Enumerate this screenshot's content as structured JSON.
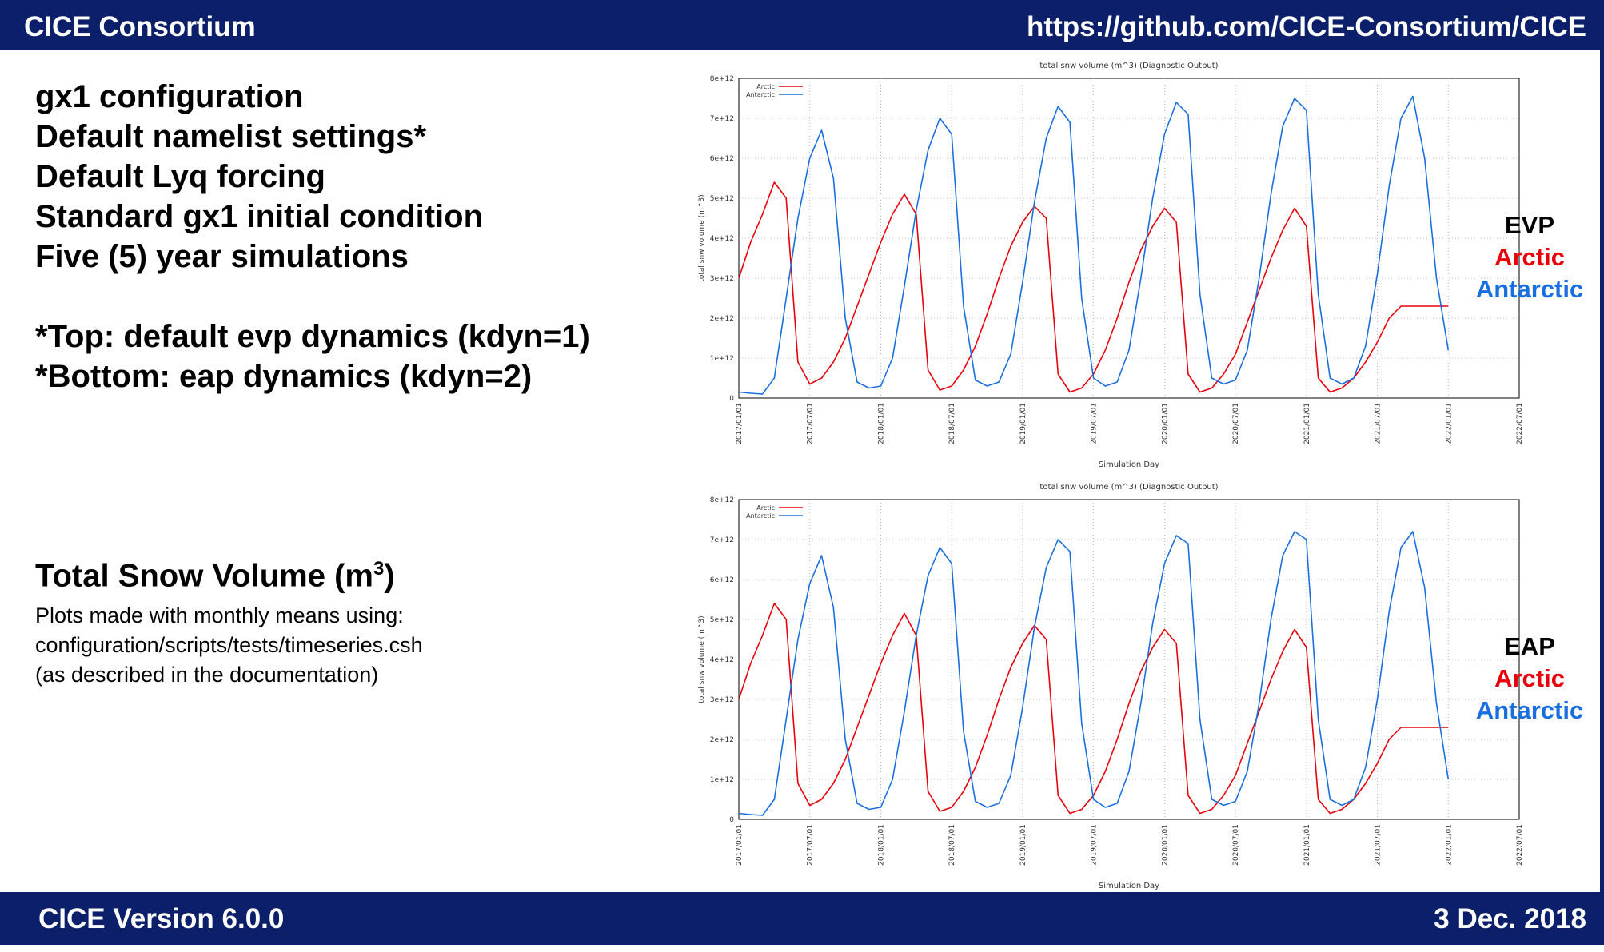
{
  "header": {
    "org": "CICE Consortium",
    "url": "https://github.com/CICE-Consortium/CICE"
  },
  "footer": {
    "version": "CICE Version 6.0.0",
    "date": "3 Dec. 2018"
  },
  "left": {
    "lines": [
      "gx1 configuration",
      "Default namelist settings*",
      "Default Lyq forcing",
      "Standard gx1 initial condition",
      "Five (5) year simulations",
      "",
      "*Top: default evp dynamics (kdyn=1)",
      "*Bottom: eap dynamics (kdyn=2)"
    ],
    "snow_title": "Total Snow Volume (m",
    "snow_title_sup": "3",
    "snow_title_end": ")",
    "notes": [
      "Plots made with monthly means using:",
      "configuration/scripts/tests/timeseries.csh",
      "(as described in the documentation)"
    ]
  },
  "labels": {
    "top": {
      "name": "EVP",
      "arctic": "Arctic",
      "antarctic": "Antarctic"
    },
    "bottom": {
      "name": "EAP",
      "arctic": "Arctic",
      "antarctic": "Antarctic"
    }
  },
  "colors": {
    "banner": "#0b1f6b",
    "arctic": "#e8000b",
    "antarctic": "#1a6fe0"
  },
  "chart_data": [
    {
      "type": "line",
      "title": "total snw volume (m^3) (Diagnostic Output)",
      "xlabel": "Simulation Day",
      "ylabel": "total snw volume (m^3)",
      "ylim": [
        0,
        8000000000000.0
      ],
      "yticks": [
        "0",
        "1e+12",
        "2e+12",
        "3e+12",
        "4e+12",
        "5e+12",
        "6e+12",
        "7e+12",
        "8e+12"
      ],
      "xticks": [
        "2017/01/01",
        "2017/07/01",
        "2018/01/01",
        "2018/07/01",
        "2019/01/01",
        "2019/07/01",
        "2020/01/01",
        "2020/07/01",
        "2021/01/01",
        "2021/07/01",
        "2022/01/01",
        "2022/07/01"
      ],
      "legend": "top-left",
      "x": [
        "2017-01",
        "2017-02",
        "2017-03",
        "2017-04",
        "2017-05",
        "2017-06",
        "2017-07",
        "2017-08",
        "2017-09",
        "2017-10",
        "2017-11",
        "2017-12",
        "2018-01",
        "2018-02",
        "2018-03",
        "2018-04",
        "2018-05",
        "2018-06",
        "2018-07",
        "2018-08",
        "2018-09",
        "2018-10",
        "2018-11",
        "2018-12",
        "2019-01",
        "2019-02",
        "2019-03",
        "2019-04",
        "2019-05",
        "2019-06",
        "2019-07",
        "2019-08",
        "2019-09",
        "2019-10",
        "2019-11",
        "2019-12",
        "2020-01",
        "2020-02",
        "2020-03",
        "2020-04",
        "2020-05",
        "2020-06",
        "2020-07",
        "2020-08",
        "2020-09",
        "2020-10",
        "2020-11",
        "2020-12",
        "2021-01",
        "2021-02",
        "2021-03",
        "2021-04",
        "2021-05",
        "2021-06",
        "2021-07",
        "2021-08",
        "2021-09",
        "2021-10",
        "2021-11",
        "2021-12",
        "2022-01"
      ],
      "series": [
        {
          "name": "Arctic",
          "values": [
            3000000000000.0,
            3900000000000.0,
            4600000000000.0,
            5400000000000.0,
            5000000000000.0,
            900000000000.0,
            350000000000.0,
            500000000000.0,
            900000000000.0,
            1500000000000.0,
            2300000000000.0,
            3100000000000.0,
            3900000000000.0,
            4600000000000.0,
            5100000000000.0,
            4600000000000.0,
            700000000000.0,
            200000000000.0,
            300000000000.0,
            700000000000.0,
            1300000000000.0,
            2100000000000.0,
            3000000000000.0,
            3800000000000.0,
            4400000000000.0,
            4800000000000.0,
            4500000000000.0,
            600000000000.0,
            150000000000.0,
            250000000000.0,
            600000000000.0,
            1200000000000.0,
            2000000000000.0,
            2900000000000.0,
            3700000000000.0,
            4300000000000.0,
            4750000000000.0,
            4400000000000.0,
            600000000000.0,
            150000000000.0,
            250000000000.0,
            600000000000.0,
            1100000000000.0,
            1900000000000.0,
            2700000000000.0,
            3500000000000.0,
            4200000000000.0,
            4750000000000.0,
            4300000000000.0,
            500000000000.0,
            150000000000.0,
            250000000000.0,
            500000000000.0,
            900000000000.0,
            1400000000000.0,
            2000000000000.0,
            2300000000000.0,
            2300000000000.0,
            2300000000000.0,
            2300000000000.0,
            2300000000000.0
          ]
        },
        {
          "name": "Antarctic",
          "values": [
            150000000000.0,
            120000000000.0,
            100000000000.0,
            500000000000.0,
            2500000000000.0,
            4500000000000.0,
            6000000000000.0,
            6700000000000.0,
            5500000000000.0,
            2000000000000.0,
            400000000000.0,
            250000000000.0,
            300000000000.0,
            1000000000000.0,
            2800000000000.0,
            4700000000000.0,
            6200000000000.0,
            7000000000000.0,
            6600000000000.0,
            2300000000000.0,
            450000000000.0,
            300000000000.0,
            400000000000.0,
            1100000000000.0,
            2900000000000.0,
            4900000000000.0,
            6500000000000.0,
            7300000000000.0,
            6900000000000.0,
            2500000000000.0,
            500000000000.0,
            300000000000.0,
            400000000000.0,
            1200000000000.0,
            3000000000000.0,
            5000000000000.0,
            6600000000000.0,
            7400000000000.0,
            7100000000000.0,
            2600000000000.0,
            500000000000.0,
            350000000000.0,
            450000000000.0,
            1200000000000.0,
            3000000000000.0,
            5100000000000.0,
            6800000000000.0,
            7500000000000.0,
            7200000000000.0,
            2600000000000.0,
            500000000000.0,
            350000000000.0,
            500000000000.0,
            1300000000000.0,
            3100000000000.0,
            5300000000000.0,
            7000000000000.0,
            7550000000000.0,
            6000000000000.0,
            3000000000000.0,
            1200000000000.0
          ]
        }
      ]
    },
    {
      "type": "line",
      "title": "total snw volume (m^3) (Diagnostic Output)",
      "xlabel": "Simulation Day",
      "ylabel": "total snw volume (m^3)",
      "ylim": [
        0,
        8000000000000.0
      ],
      "yticks": [
        "0",
        "1e+12",
        "2e+12",
        "3e+12",
        "4e+12",
        "5e+12",
        "6e+12",
        "7e+12",
        "8e+12"
      ],
      "xticks": [
        "2017/01/01",
        "2017/07/01",
        "2018/01/01",
        "2018/07/01",
        "2019/01/01",
        "2019/07/01",
        "2020/01/01",
        "2020/07/01",
        "2021/01/01",
        "2021/07/01",
        "2022/01/01",
        "2022/07/01"
      ],
      "legend": "top-left",
      "x": [
        "2017-01",
        "2017-02",
        "2017-03",
        "2017-04",
        "2017-05",
        "2017-06",
        "2017-07",
        "2017-08",
        "2017-09",
        "2017-10",
        "2017-11",
        "2017-12",
        "2018-01",
        "2018-02",
        "2018-03",
        "2018-04",
        "2018-05",
        "2018-06",
        "2018-07",
        "2018-08",
        "2018-09",
        "2018-10",
        "2018-11",
        "2018-12",
        "2019-01",
        "2019-02",
        "2019-03",
        "2019-04",
        "2019-05",
        "2019-06",
        "2019-07",
        "2019-08",
        "2019-09",
        "2019-10",
        "2019-11",
        "2019-12",
        "2020-01",
        "2020-02",
        "2020-03",
        "2020-04",
        "2020-05",
        "2020-06",
        "2020-07",
        "2020-08",
        "2020-09",
        "2020-10",
        "2020-11",
        "2020-12",
        "2021-01",
        "2021-02",
        "2021-03",
        "2021-04",
        "2021-05",
        "2021-06",
        "2021-07",
        "2021-08",
        "2021-09",
        "2021-10",
        "2021-11",
        "2021-12",
        "2022-01"
      ],
      "series": [
        {
          "name": "Arctic",
          "values": [
            3000000000000.0,
            3900000000000.0,
            4600000000000.0,
            5400000000000.0,
            5000000000000.0,
            900000000000.0,
            350000000000.0,
            500000000000.0,
            900000000000.0,
            1500000000000.0,
            2300000000000.0,
            3100000000000.0,
            3900000000000.0,
            4600000000000.0,
            5150000000000.0,
            4600000000000.0,
            700000000000.0,
            200000000000.0,
            300000000000.0,
            700000000000.0,
            1300000000000.0,
            2100000000000.0,
            3000000000000.0,
            3800000000000.0,
            4400000000000.0,
            4850000000000.0,
            4500000000000.0,
            600000000000.0,
            150000000000.0,
            250000000000.0,
            600000000000.0,
            1200000000000.0,
            2000000000000.0,
            2900000000000.0,
            3700000000000.0,
            4300000000000.0,
            4750000000000.0,
            4400000000000.0,
            600000000000.0,
            150000000000.0,
            250000000000.0,
            600000000000.0,
            1100000000000.0,
            1900000000000.0,
            2700000000000.0,
            3500000000000.0,
            4200000000000.0,
            4750000000000.0,
            4300000000000.0,
            500000000000.0,
            150000000000.0,
            250000000000.0,
            500000000000.0,
            900000000000.0,
            1400000000000.0,
            2000000000000.0,
            2300000000000.0,
            2300000000000.0,
            2300000000000.0,
            2300000000000.0,
            2300000000000.0
          ]
        },
        {
          "name": "Antarctic",
          "values": [
            150000000000.0,
            120000000000.0,
            100000000000.0,
            500000000000.0,
            2500000000000.0,
            4500000000000.0,
            5900000000000.0,
            6600000000000.0,
            5300000000000.0,
            2000000000000.0,
            400000000000.0,
            250000000000.0,
            300000000000.0,
            1000000000000.0,
            2700000000000.0,
            4600000000000.0,
            6100000000000.0,
            6800000000000.0,
            6400000000000.0,
            2200000000000.0,
            450000000000.0,
            300000000000.0,
            400000000000.0,
            1100000000000.0,
            2800000000000.0,
            4800000000000.0,
            6300000000000.0,
            7000000000000.0,
            6700000000000.0,
            2400000000000.0,
            500000000000.0,
            300000000000.0,
            400000000000.0,
            1200000000000.0,
            2900000000000.0,
            4900000000000.0,
            6400000000000.0,
            7100000000000.0,
            6900000000000.0,
            2500000000000.0,
            500000000000.0,
            350000000000.0,
            450000000000.0,
            1200000000000.0,
            2900000000000.0,
            5000000000000.0,
            6600000000000.0,
            7200000000000.0,
            7000000000000.0,
            2500000000000.0,
            500000000000.0,
            350000000000.0,
            500000000000.0,
            1300000000000.0,
            3000000000000.0,
            5200000000000.0,
            6800000000000.0,
            7200000000000.0,
            5800000000000.0,
            2900000000000.0,
            1000000000000.0
          ]
        }
      ]
    }
  ]
}
